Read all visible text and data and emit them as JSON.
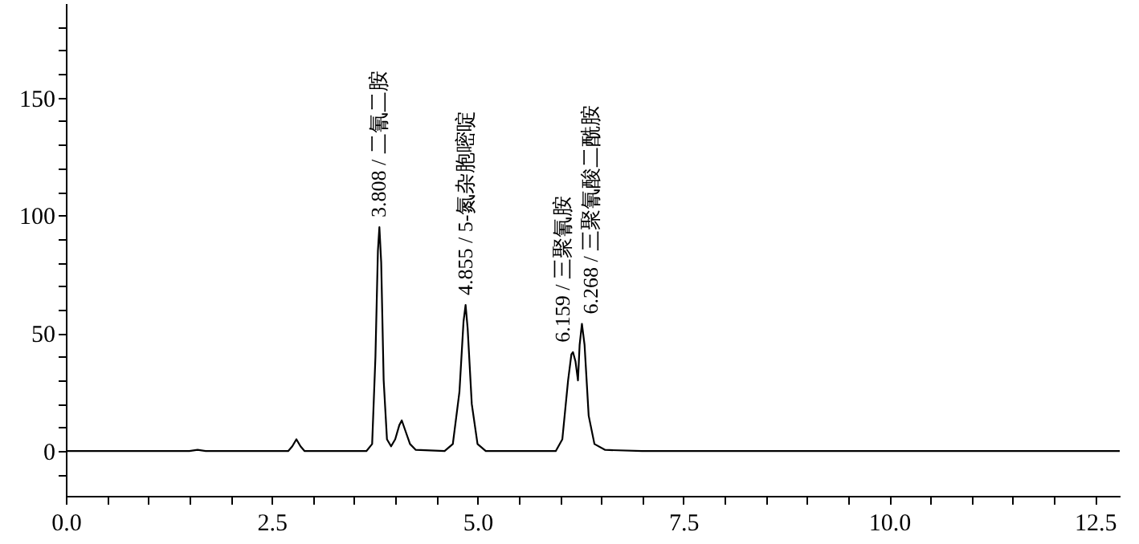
{
  "chart_data": {
    "type": "line",
    "x": [
      0,
      1.5,
      1.6,
      1.7,
      2.7,
      2.75,
      2.8,
      2.85,
      2.9,
      3.65,
      3.72,
      3.76,
      3.79,
      3.808,
      3.83,
      3.86,
      3.9,
      3.95,
      4.0,
      4.05,
      4.08,
      4.12,
      4.18,
      4.25,
      4.6,
      4.7,
      4.78,
      4.83,
      4.855,
      4.88,
      4.93,
      5.0,
      5.1,
      5.95,
      6.03,
      6.1,
      6.14,
      6.159,
      6.19,
      6.22,
      6.24,
      6.268,
      6.3,
      6.35,
      6.42,
      6.55,
      7.0,
      12.8
    ],
    "series": [
      {
        "color": "#000000",
        "values": [
          0,
          0,
          0.5,
          0,
          0,
          2,
          5,
          2,
          0,
          0,
          3,
          40,
          85,
          95,
          80,
          30,
          5,
          2,
          5,
          11,
          13,
          9,
          3,
          0.5,
          0,
          3,
          25,
          55,
          62,
          52,
          20,
          3,
          0,
          0,
          5,
          30,
          41,
          42,
          38,
          30,
          45,
          54,
          45,
          15,
          3,
          0.5,
          0,
          0
        ]
      }
    ],
    "xlim": [
      0,
      12.8
    ],
    "ylim": [
      -19,
      190
    ],
    "xticks": [
      {
        "value": 0,
        "label": "0.0"
      },
      {
        "value": 0.5,
        "label": null
      },
      {
        "value": 1,
        "label": null
      },
      {
        "value": 1.5,
        "label": null
      },
      {
        "value": 2,
        "label": null
      },
      2.5,
      {
        "value": 3,
        "label": null
      },
      {
        "value": 3.5,
        "label": null
      },
      {
        "value": 4,
        "label": null
      },
      {
        "value": 4.5,
        "label": null
      },
      {
        "value": 5,
        "label": "5.0"
      },
      {
        "value": 5.5,
        "label": null
      },
      {
        "value": 6,
        "label": null
      },
      {
        "value": 6.5,
        "label": null
      },
      {
        "value": 7,
        "label": null
      },
      7.5,
      {
        "value": 8,
        "label": null
      },
      {
        "value": 8.5,
        "label": null
      },
      {
        "value": 9,
        "label": null
      },
      {
        "value": 9.5,
        "label": null
      },
      {
        "value": 10,
        "label": "10.0"
      },
      {
        "value": 10.5,
        "label": null
      },
      {
        "value": 11,
        "label": null
      },
      {
        "value": 11.5,
        "label": null
      },
      {
        "value": 12,
        "label": null
      },
      12.5
    ],
    "yticks": [
      {
        "value": -10,
        "label": null
      },
      0,
      {
        "value": 10,
        "label": null
      },
      {
        "value": 20,
        "label": null
      },
      {
        "value": 30,
        "label": null
      },
      {
        "value": 40,
        "label": null
      },
      50,
      {
        "value": 60,
        "label": null
      },
      {
        "value": 70,
        "label": null
      },
      {
        "value": 80,
        "label": null
      },
      {
        "value": 90,
        "label": null
      },
      100,
      {
        "value": 110,
        "label": null
      },
      {
        "value": 120,
        "label": null
      },
      {
        "value": 130,
        "label": null
      },
      {
        "value": 140,
        "label": null
      },
      150,
      {
        "value": 160,
        "label": null
      },
      {
        "value": 170,
        "label": null
      },
      {
        "value": 180,
        "label": null
      }
    ],
    "annotations": [
      {
        "text": "3.808 / 二氰二胺",
        "x": 3.808,
        "y": 95
      },
      {
        "text": "4.855 / 5-氮杂胞嘧啶",
        "x": 4.855,
        "y": 62
      },
      {
        "text": "6.159 / 三聚氰胺",
        "x": 6.159,
        "y": 42
      },
      {
        "text": "6.268 / 三聚氰酸二酰胺",
        "x": 6.268,
        "y": 54
      }
    ],
    "grid": false,
    "marker": "none",
    "line_style": "solid"
  }
}
